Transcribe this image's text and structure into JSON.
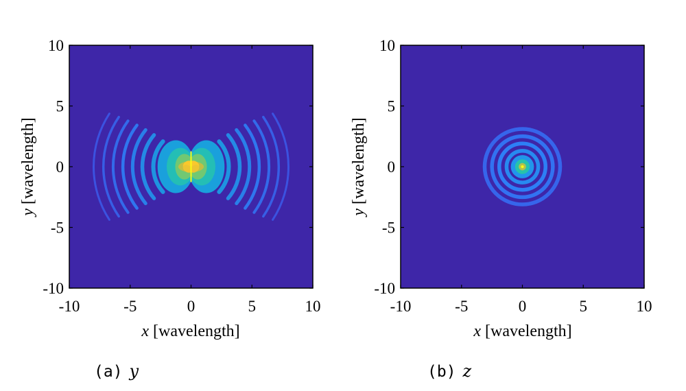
{
  "chart_data": [
    {
      "type": "heatmap",
      "panel": "a",
      "caption_label": "(a)",
      "caption_var": "y",
      "xlabel_var": "x",
      "xlabel_unit": "[wavelength]",
      "ylabel_var": "y",
      "ylabel_unit": "[wavelength]",
      "xlim": [
        -10,
        10
      ],
      "ylim": [
        -10,
        10
      ],
      "xticks": [
        "-10",
        "-5",
        "0",
        "5",
        "10"
      ],
      "yticks": [
        "-10",
        "-5",
        "0",
        "5",
        "10"
      ],
      "xtick_values": [
        -10,
        -5,
        0,
        5,
        10
      ],
      "ytick_values": [
        -10,
        -5,
        0,
        5,
        10
      ],
      "colormap": "parula",
      "field_pattern": "butterfly",
      "center": [
        0,
        0
      ],
      "peak_value": 1.0,
      "main_lobe_extent": [
        2.5,
        1.4
      ],
      "side_arc_radii": [
        3.1,
        4.0,
        4.8,
        5.6,
        6.4,
        7.2,
        8.0
      ],
      "background_color": "#3e26a8"
    },
    {
      "type": "heatmap",
      "panel": "b",
      "caption_label": "(b)",
      "caption_var": "z",
      "xlabel_var": "x",
      "xlabel_unit": "[wavelength]",
      "ylabel_var": "y",
      "ylabel_unit": "[wavelength]",
      "xlim": [
        -10,
        10
      ],
      "ylim": [
        -10,
        10
      ],
      "xticks": [
        "-10",
        "-5",
        "0",
        "5",
        "10"
      ],
      "yticks": [
        "-10",
        "-5",
        "0",
        "5",
        "10"
      ],
      "xtick_values": [
        -10,
        -5,
        0,
        5,
        10
      ],
      "ytick_values": [
        -10,
        -5,
        0,
        5,
        10
      ],
      "colormap": "parula",
      "field_pattern": "rings",
      "center": [
        0,
        0
      ],
      "peak_value": 1.0,
      "ring_radii": [
        1.3,
        1.9,
        2.5,
        3.1
      ],
      "background_color": "#3e26a8"
    }
  ]
}
